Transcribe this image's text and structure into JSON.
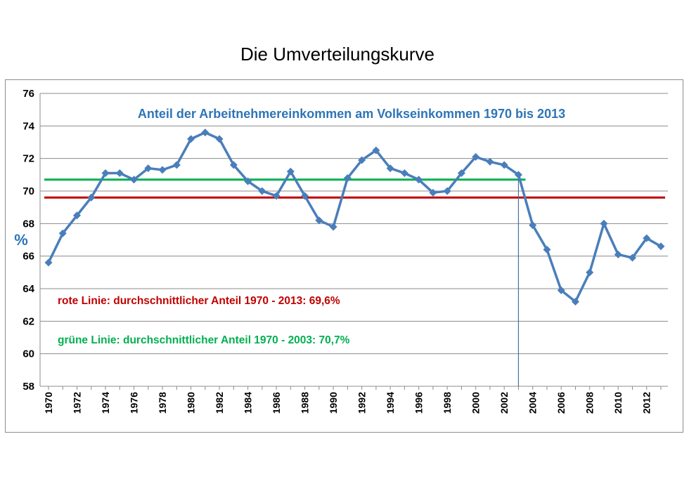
{
  "page": {
    "title": "Die Umverteilungskurve"
  },
  "chart_data": {
    "type": "line",
    "title": "Anteil der Arbeitnehmereinkommen am Volkseinkommen 1970 bis 2013",
    "ylabel": "%",
    "xlabel": "",
    "ylim": [
      58,
      76
    ],
    "xlim": [
      1970,
      2013
    ],
    "yticks": [
      "58",
      "60",
      "62",
      "64",
      "66",
      "68",
      "70",
      "72",
      "74",
      "76"
    ],
    "xticks": [
      "1970",
      "1972",
      "1974",
      "1976",
      "1978",
      "1980",
      "1982",
      "1984",
      "1986",
      "1988",
      "1990",
      "1992",
      "1994",
      "1996",
      "1998",
      "2000",
      "2002",
      "2004",
      "2006",
      "2008",
      "2010",
      "2012"
    ],
    "grid": "horizontal",
    "x": [
      1970,
      1971,
      1972,
      1973,
      1974,
      1975,
      1976,
      1977,
      1978,
      1979,
      1980,
      1981,
      1982,
      1983,
      1984,
      1985,
      1986,
      1987,
      1988,
      1989,
      1990,
      1991,
      1992,
      1993,
      1994,
      1995,
      1996,
      1997,
      1998,
      1999,
      2000,
      2001,
      2002,
      2003,
      2004,
      2005,
      2006,
      2007,
      2008,
      2009,
      2010,
      2011,
      2012,
      2013
    ],
    "series": [
      {
        "values": [
          65.6,
          67.4,
          68.5,
          69.6,
          71.1,
          71.1,
          70.7,
          71.4,
          71.3,
          71.6,
          73.2,
          73.6,
          73.2,
          71.6,
          70.6,
          70.0,
          69.7,
          71.2,
          69.7,
          68.2,
          67.8,
          70.8,
          71.9,
          72.5,
          71.4,
          71.1,
          70.7,
          69.9,
          70.0,
          71.1,
          72.1,
          71.8,
          71.6,
          71.0,
          67.9,
          66.4,
          63.9,
          63.2,
          65.0,
          68.0,
          66.1,
          65.9,
          67.1,
          66.6
        ],
        "color": "#4a7ebb"
      }
    ],
    "reference_lines": [
      {
        "label": "rote Linie:  durchschnittlicher Anteil 1970 - 2013: 69,6%",
        "value": 69.6,
        "from": 1970,
        "to": 2013,
        "color": "#c00000"
      },
      {
        "label": "grüne Linie:  durchschnittlicher Anteil 1970 - 2003: 70,7%",
        "value": 70.7,
        "from": 1970,
        "to": 2003,
        "color": "#00b050"
      }
    ],
    "vertical_marker": {
      "x": 2003,
      "color": "#4a6fa5"
    }
  }
}
